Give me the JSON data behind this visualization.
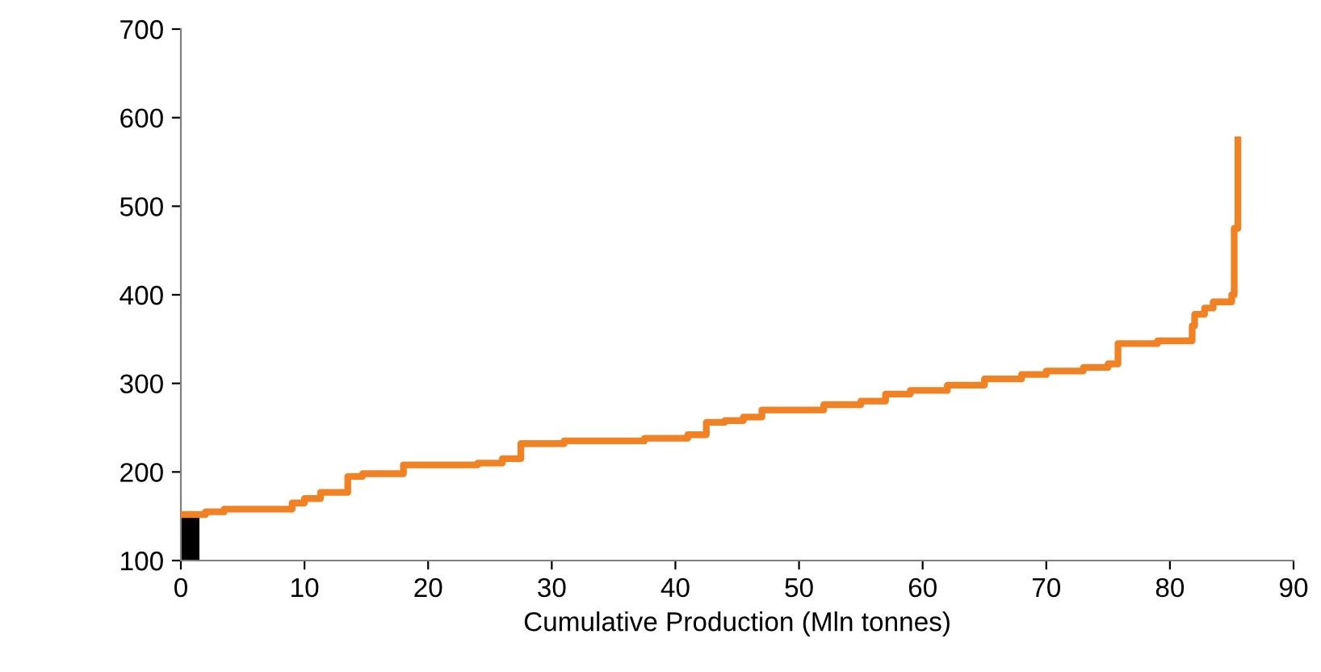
{
  "chart_data": {
    "type": "step",
    "xlabel": "Cumulative Production (Mln tonnes)",
    "xlim": [
      0,
      90
    ],
    "xticks": [
      0,
      10,
      20,
      30,
      40,
      50,
      60,
      70,
      80,
      90
    ],
    "ylim": [
      100,
      700
    ],
    "yticks": [
      100,
      200,
      300,
      400,
      500,
      600,
      700
    ],
    "grid": false,
    "series": [
      {
        "type": "area",
        "color": "#000000",
        "x": [
          0,
          1.5
        ],
        "values": [
          150,
          150
        ]
      },
      {
        "color": "#f08224",
        "x": [
          0,
          2,
          3.5,
          9,
          10,
          11.3,
          13.5,
          14.7,
          18,
          24,
          26,
          27.5,
          31,
          37.5,
          41,
          42.5,
          44,
          45.5,
          47,
          52,
          55,
          57,
          59,
          62,
          65,
          68,
          70,
          73,
          75,
          75.8,
          79,
          81.8,
          82,
          82.8,
          83.5,
          85,
          85.2,
          85.5
        ],
        "values": [
          152,
          155,
          158,
          165,
          170,
          177,
          195,
          198,
          208,
          210,
          215,
          232,
          235,
          238,
          242,
          256,
          258,
          262,
          270,
          276,
          280,
          288,
          292,
          298,
          305,
          310,
          314,
          318,
          322,
          345,
          348,
          365,
          378,
          385,
          392,
          400,
          475,
          575
        ]
      }
    ]
  }
}
